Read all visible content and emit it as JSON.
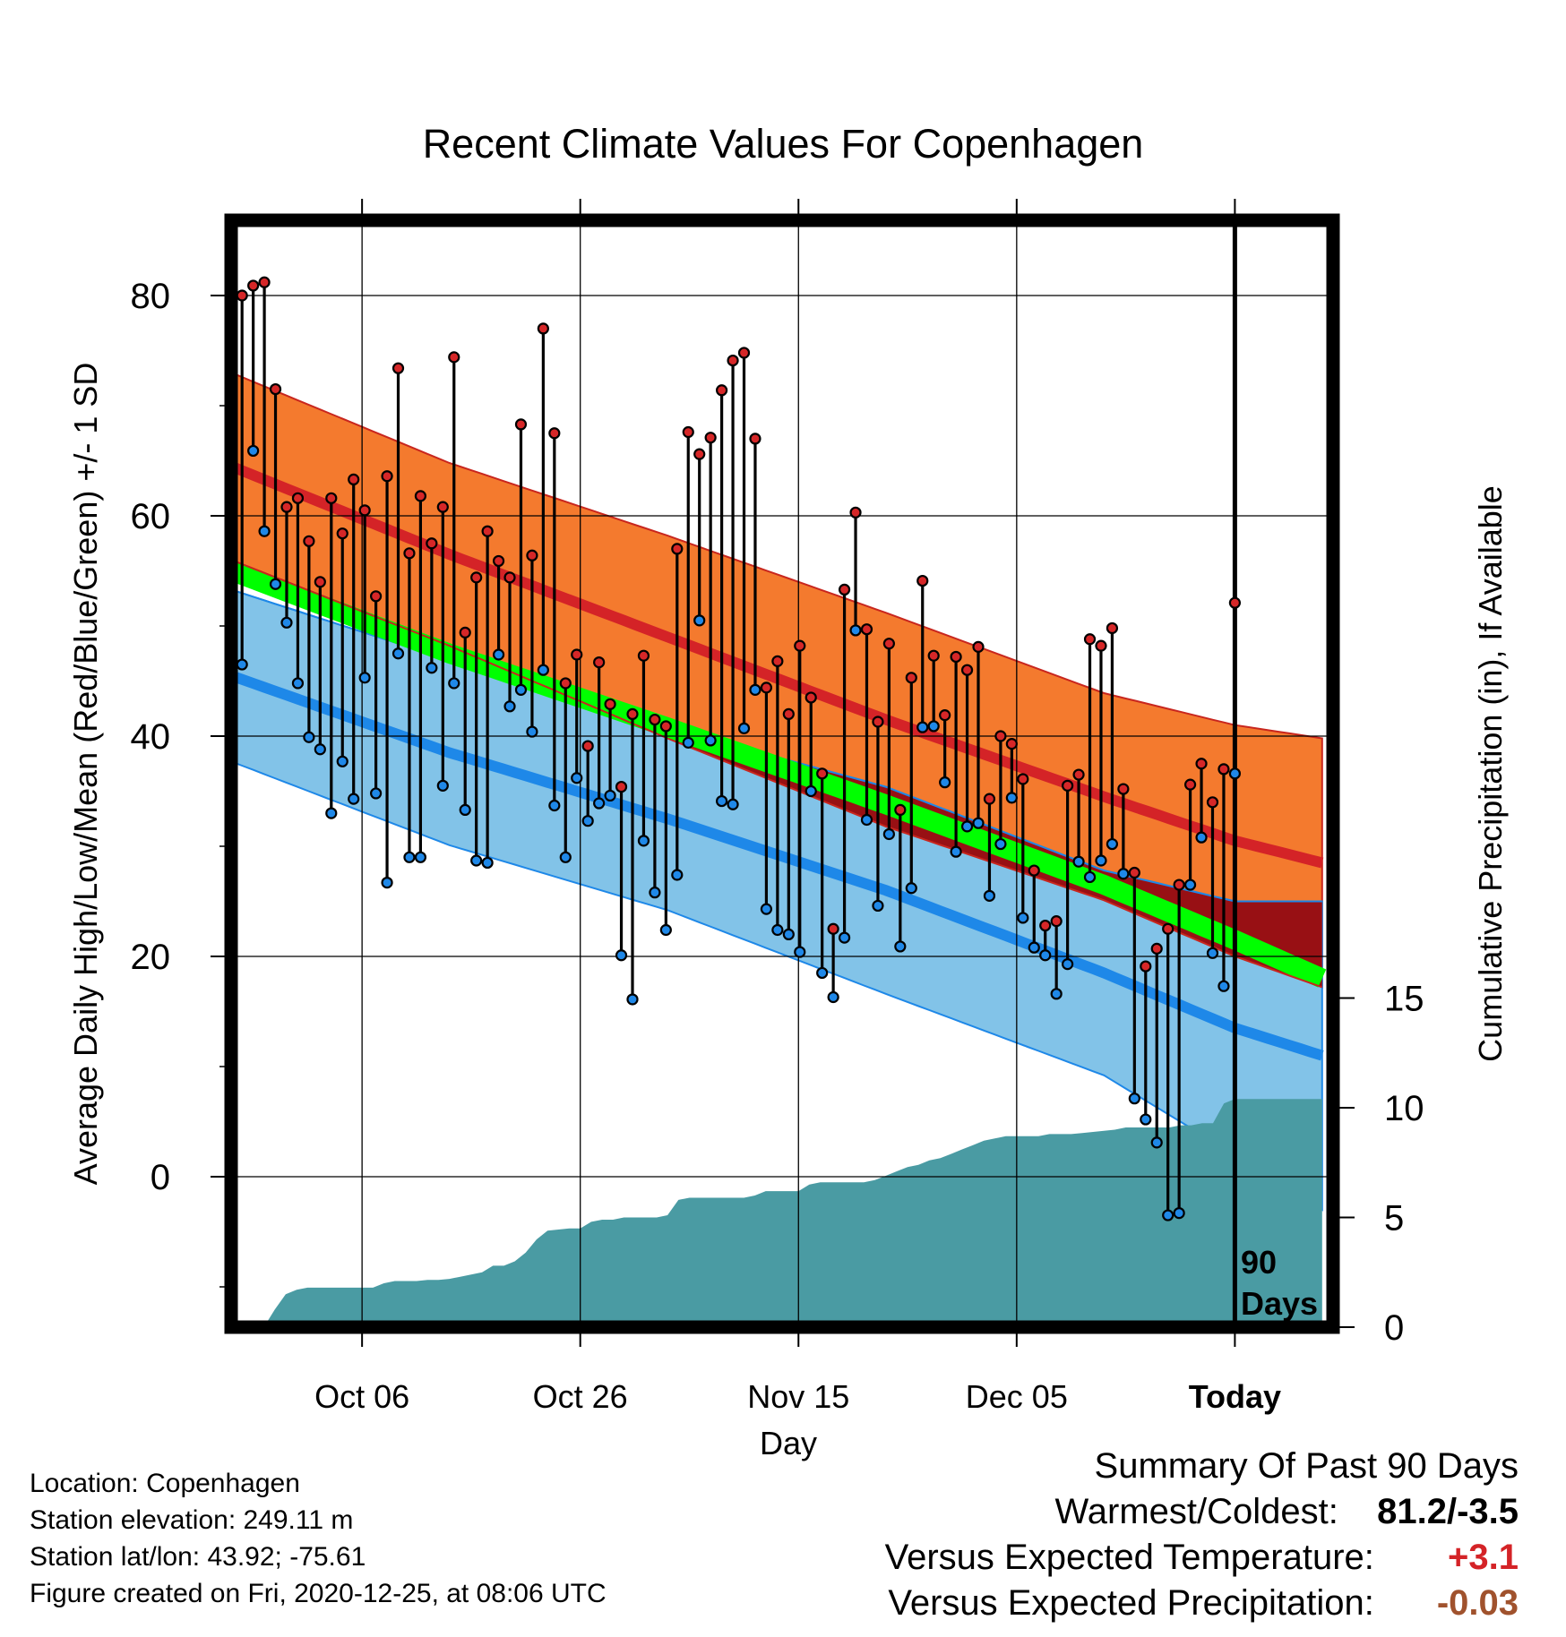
{
  "chart_data": {
    "type": "line",
    "title": "Recent Climate Values For Copenhagen",
    "xlabel": "Day",
    "ylabel": "Average Daily High/Low/Mean (Red/Blue/Green) +/- 1 SD",
    "y2label": "Cumulative Precipitation (in), If Available",
    "x_tick_labels": [
      "Oct 06",
      "Oct 26",
      "Nov 15",
      "Dec 05",
      "Today"
    ],
    "x_tick_days": [
      12,
      32,
      52,
      72,
      92
    ],
    "xlim": [
      0,
      101
    ],
    "ylim": [
      -13,
      86
    ],
    "yticks": [
      0,
      20,
      40,
      60,
      80
    ],
    "ylim2": [
      0,
      20
    ],
    "yticks2": [
      0,
      5,
      10,
      15
    ],
    "today_marker": {
      "day": 92,
      "label_line1": "90",
      "label_line2": "Days"
    },
    "grid": true,
    "colors": {
      "high_band": "#f47a2e",
      "high_mean": "#d42327",
      "high_band_edge": "#c8261e",
      "low_band": "#82c3e8",
      "low_mean": "#1e88e8",
      "low_band_edge": "#1e88e8",
      "mean_band": "#00ff00",
      "overlap": "#981014",
      "precip_fill": "#4a9ba3",
      "high_dot": "#d62728",
      "low_dot": "#1f88e8"
    },
    "normals": {
      "days": [
        0,
        20,
        40,
        60,
        80,
        92,
        100
      ],
      "high_mean": [
        64.5,
        56.5,
        49,
        41.5,
        34.5,
        30.5,
        28.5
      ],
      "high_sd": [
        8.5,
        8.3,
        9.2,
        9.7,
        9.4,
        10.5,
        11.3
      ],
      "low_mean": [
        45.5,
        38.5,
        32.5,
        26.0,
        18.5,
        13.5,
        11
      ],
      "low_sd": [
        7.8,
        8.4,
        8.3,
        9.4,
        9.3,
        11.5,
        14
      ],
      "avg_mean": [
        55,
        47.5,
        40.8,
        33.8,
        26.5,
        21.5,
        18
      ]
    },
    "daily": {
      "high": [
        80,
        80.9,
        81.2,
        71.5,
        60.8,
        61.6,
        57.7,
        54,
        61.6,
        58.4,
        63.3,
        60.5,
        52.7,
        63.6,
        73.4,
        56.6,
        61.8,
        57.5,
        60.8,
        74.4,
        49.4,
        54.4,
        58.6,
        55.9,
        54.4,
        68.3,
        56.4,
        77,
        67.5,
        44.8,
        47.4,
        39.1,
        46.7,
        42.9,
        35.4,
        42,
        47.3,
        41.5,
        40.9,
        57,
        67.6,
        65.6,
        67.1,
        71.4,
        74.1,
        74.8,
        67,
        44.4,
        46.8,
        42,
        48.2,
        43.5,
        36.6,
        22.5,
        53.3,
        60.3,
        49.7,
        41.3,
        48.4,
        33.3,
        45.3,
        54.1,
        47.3,
        41.9,
        47.2,
        46,
        48.1,
        34.3,
        40,
        39.3,
        36.1,
        27.8,
        22.8,
        23.2,
        35.5,
        36.5,
        48.8,
        48.2,
        49.8,
        35.2,
        27.6,
        19.1,
        20.7,
        22.5,
        26.5,
        35.6,
        37.5,
        34,
        37,
        52.1
      ],
      "low": [
        46.5,
        65.9,
        58.6,
        53.8,
        50.3,
        44.8,
        39.9,
        38.8,
        33,
        37.7,
        34.3,
        45.3,
        34.8,
        26.7,
        47.5,
        29,
        29,
        46.2,
        35.5,
        44.8,
        33.3,
        28.7,
        28.5,
        47.4,
        42.7,
        44.2,
        40.4,
        46,
        33.7,
        29,
        36.2,
        32.3,
        33.9,
        34.6,
        20.1,
        16.1,
        30.5,
        25.8,
        22.4,
        27.4,
        39.4,
        50.5,
        39.6,
        34.1,
        33.8,
        40.7,
        44.2,
        24.3,
        22.4,
        22,
        20.4,
        35,
        18.5,
        16.3,
        21.7,
        49.6,
        32.4,
        24.6,
        31.1,
        20.9,
        26.2,
        40.8,
        40.9,
        35.8,
        29.5,
        31.8,
        32.1,
        25.5,
        30.2,
        34.4,
        23.5,
        20.8,
        20.1,
        16.6,
        19.3,
        28.6,
        27.2,
        28.7,
        30.2,
        27.5,
        7.1,
        5.2,
        3.1,
        -3.5,
        -3.3,
        26.5,
        30.8,
        20.3,
        17.3,
        36.6
      ]
    },
    "precip": {
      "days": [
        0,
        2,
        3,
        4,
        5,
        6,
        7,
        8,
        9,
        10,
        11,
        12,
        13,
        14,
        15,
        16,
        17,
        18,
        19,
        20,
        21,
        22,
        23,
        24,
        25,
        26,
        27,
        28,
        29,
        30,
        31,
        32,
        33,
        34,
        35,
        36,
        37,
        38,
        39,
        40,
        41,
        42,
        43,
        44,
        45,
        46,
        47,
        48,
        49,
        50,
        51,
        52,
        53,
        54,
        55,
        56,
        57,
        58,
        59,
        60,
        61,
        62,
        63,
        64,
        65,
        66,
        67,
        68,
        69,
        70,
        71,
        72,
        73,
        74,
        75,
        76,
        77,
        78,
        79,
        80,
        81,
        82,
        83,
        84,
        85,
        86,
        87,
        88,
        89,
        90,
        91,
        92,
        93,
        94,
        95,
        96,
        97,
        98,
        99,
        100
      ],
      "values": [
        0,
        0,
        0,
        0.8,
        1.5,
        1.7,
        1.8,
        1.8,
        1.8,
        1.8,
        1.8,
        1.8,
        1.8,
        2,
        2.1,
        2.1,
        2.1,
        2.15,
        2.15,
        2.2,
        2.3,
        2.4,
        2.5,
        2.8,
        2.8,
        3,
        3.4,
        4,
        4.4,
        4.45,
        4.5,
        4.5,
        4.8,
        4.9,
        4.9,
        5,
        5,
        5,
        5,
        5.1,
        5.8,
        5.9,
        5.9,
        5.9,
        5.9,
        5.9,
        5.9,
        6.0,
        6.2,
        6.2,
        6.2,
        6.2,
        6.5,
        6.6,
        6.6,
        6.6,
        6.6,
        6.6,
        6.7,
        6.9,
        7.1,
        7.3,
        7.4,
        7.6,
        7.7,
        7.9,
        8.1,
        8.3,
        8.5,
        8.6,
        8.7,
        8.7,
        8.7,
        8.7,
        8.8,
        8.8,
        8.8,
        8.85,
        8.9,
        8.95,
        9,
        9.1,
        9.1,
        9.1,
        9.1,
        9.1,
        9.2,
        9.2,
        9.3,
        9.3,
        10.2,
        10.4,
        10.4,
        10.4,
        10.4,
        10.4,
        10.4,
        10.4,
        10.4,
        10.4
      ]
    }
  },
  "footer": {
    "location": "Location: Copenhagen",
    "elevation": "Station elevation: 249.11 m",
    "latlon": "Station lat/lon: 43.92; -75.61",
    "created": "Figure created on Fri, 2020-12-25, at 08:06 UTC"
  },
  "summary": {
    "title": "Summary Of Past 90 Days",
    "warmest_label": "Warmest/Coldest:",
    "warmest_value": "81.2/-3.5",
    "temp_label": "Versus Expected Temperature:",
    "temp_value": "+3.1",
    "temp_color": "#d42327",
    "precip_label": "Versus Expected Precipitation:",
    "precip_value": "-0.03",
    "precip_color": "#a0522d"
  }
}
